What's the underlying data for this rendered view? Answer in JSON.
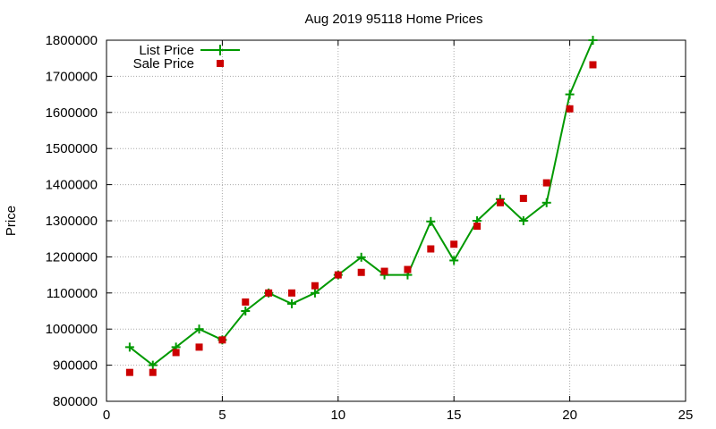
{
  "chart_data": {
    "type": "line",
    "title": "Aug 2019 95118 Home Prices",
    "xlabel": "",
    "ylabel": "Price",
    "xlim": [
      0,
      25
    ],
    "ylim": [
      800000,
      1800000
    ],
    "x_ticks": [
      "0",
      "5",
      "10",
      "15",
      "20",
      "25"
    ],
    "y_ticks": [
      "800000",
      "900000",
      "1000000",
      "1100000",
      "1200000",
      "1300000",
      "1400000",
      "1500000",
      "1600000",
      "1700000",
      "1800000"
    ],
    "grid": true,
    "legend_position": "top-left",
    "series": [
      {
        "name": "List Price",
        "style": "line+cross",
        "color": "#009900",
        "x": [
          1,
          2,
          3,
          4,
          5,
          6,
          7,
          8,
          9,
          10,
          11,
          12,
          13,
          14,
          15,
          16,
          17,
          18,
          19,
          20,
          21
        ],
        "y": [
          950000,
          900000,
          950000,
          1000000,
          970000,
          1050000,
          1100000,
          1070000,
          1100000,
          1150000,
          1199000,
          1150000,
          1150000,
          1298000,
          1190000,
          1300000,
          1360000,
          1300000,
          1350000,
          1650000,
          1800000
        ]
      },
      {
        "name": "Sale Price",
        "style": "square",
        "color": "#cc0000",
        "x": [
          1,
          2,
          3,
          4,
          5,
          6,
          7,
          8,
          9,
          10,
          11,
          12,
          13,
          14,
          15,
          16,
          17,
          18,
          19,
          20,
          21
        ],
        "y": [
          880000,
          880000,
          935000,
          950000,
          970000,
          1075000,
          1100000,
          1100000,
          1120000,
          1150000,
          1157000,
          1160000,
          1165000,
          1222000,
          1235000,
          1285000,
          1350000,
          1362000,
          1405000,
          1610000,
          1732000
        ]
      }
    ]
  }
}
